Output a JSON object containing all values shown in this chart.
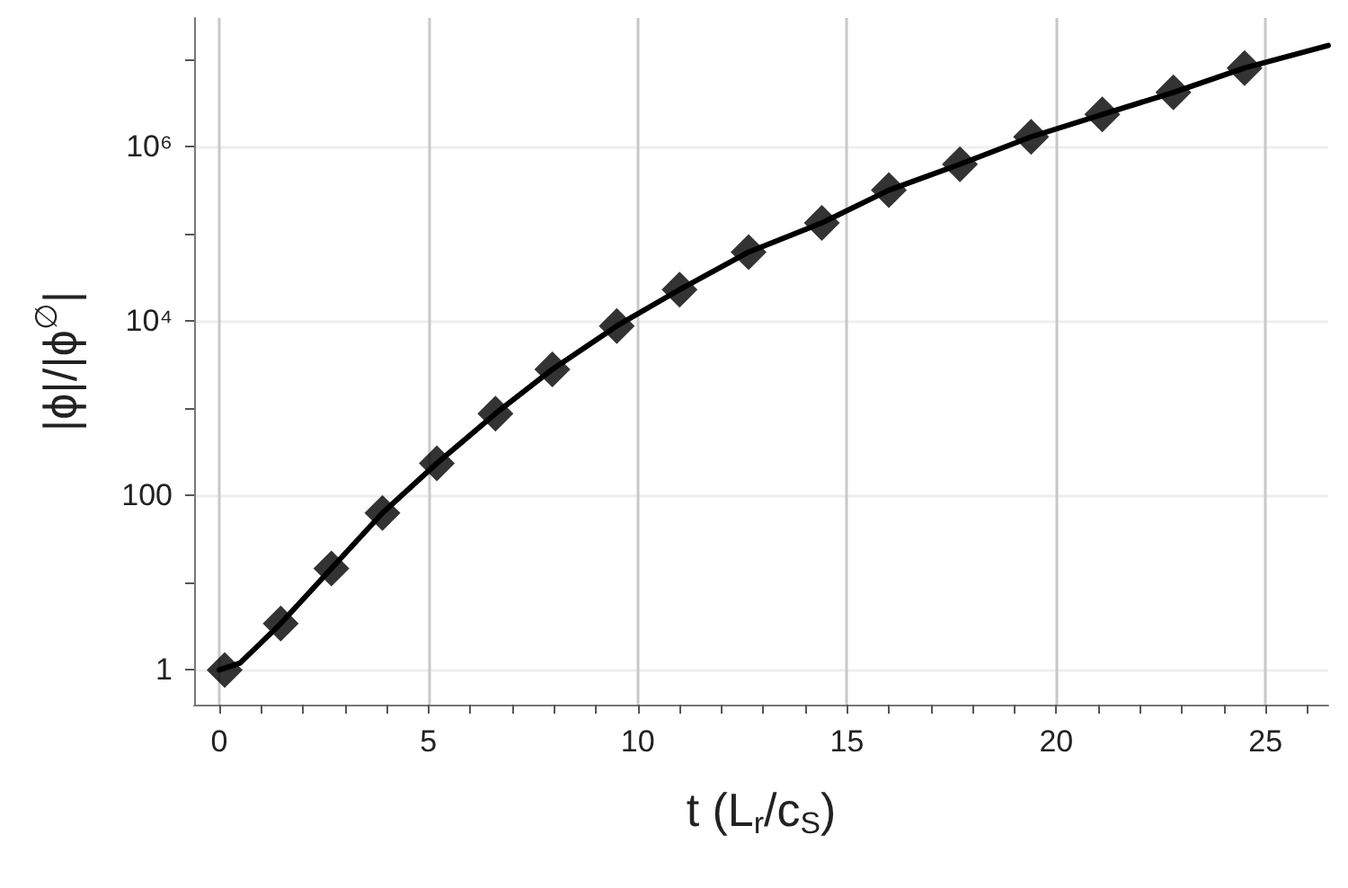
{
  "chart_data": {
    "type": "line",
    "xlabel": "t (L$_{r}$/c$_{S}$)",
    "ylabel": "|ϕ|/|ϕ$^{∅}$|",
    "log": "y",
    "grid": true,
    "xlim": [
      -0.6,
      26.5
    ],
    "xticks": [
      0,
      {
        "value": 1,
        "label": null
      },
      {
        "value": 2,
        "label": null
      },
      {
        "value": 3,
        "label": null
      },
      {
        "value": 4,
        "label": null
      },
      5,
      {
        "value": 6,
        "label": null
      },
      {
        "value": 7,
        "label": null
      },
      {
        "value": 8,
        "label": null
      },
      {
        "value": 9,
        "label": null
      },
      10,
      {
        "value": 11,
        "label": null
      },
      {
        "value": 12,
        "label": null
      },
      {
        "value": 13,
        "label": null
      },
      {
        "value": 14,
        "label": null
      },
      15,
      {
        "value": 16,
        "label": null
      },
      {
        "value": 17,
        "label": null
      },
      {
        "value": 18,
        "label": null
      },
      {
        "value": 19,
        "label": null
      },
      20,
      {
        "value": 21,
        "label": null
      },
      {
        "value": 22,
        "label": null
      },
      {
        "value": 23,
        "label": null
      },
      {
        "value": 24,
        "label": null
      },
      25,
      {
        "value": 26,
        "label": null
      }
    ],
    "ylim": [
      0.4,
      30000000
    ],
    "yticks": [
      1,
      {
        "value": 10,
        "label": null
      },
      100,
      {
        "value": 1000,
        "label": null
      },
      {
        "value": 10000,
        "label": "10⁴"
      },
      {
        "value": 100000,
        "label": null
      },
      {
        "value": 1000000,
        "label": "10⁶"
      },
      {
        "value": 10000000,
        "label": null
      }
    ],
    "series": [
      {
        "marker": "none",
        "line_style": "solid",
        "color": "#000000",
        "x": [
          0,
          0.5,
          1.47,
          2.68,
          3.9,
          5.2,
          6.6,
          7.96,
          9.5,
          11.0,
          12.65,
          14.4,
          16.0,
          17.7,
          19.4,
          21.1,
          22.8,
          24.5,
          26.5
        ],
        "values": [
          1,
          1.2,
          3.4,
          14.6,
          63,
          234,
          870,
          2800,
          8800,
          23000,
          62000,
          134000,
          318000,
          630000,
          1300000,
          2350000,
          4200000,
          8000000,
          14500000
        ]
      },
      {
        "type": "scatter",
        "marker": "diamond",
        "color": "#000000",
        "x": [
          0.13,
          1.47,
          2.68,
          3.9,
          5.2,
          6.6,
          7.96,
          9.5,
          11.0,
          12.65,
          14.4,
          16.0,
          17.7,
          19.4,
          21.1,
          22.8,
          24.5
        ],
        "values": [
          1,
          3.4,
          14.6,
          63,
          234,
          870,
          2800,
          8800,
          23000,
          62000,
          134000,
          318000,
          630000,
          1300000,
          2350000,
          4200000,
          8000000
        ]
      }
    ]
  }
}
